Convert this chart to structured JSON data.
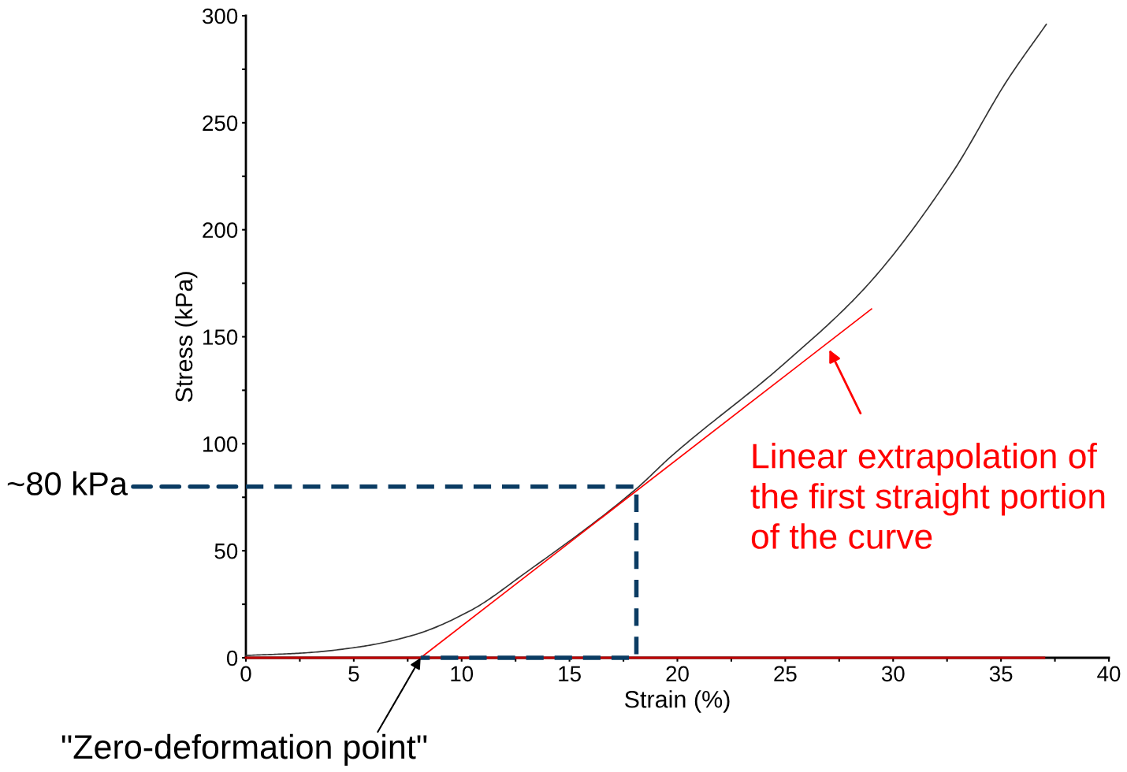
{
  "chart_data": {
    "type": "line",
    "xlabel": "Strain (%)",
    "ylabel": "Stress (kPa)",
    "xlim": [
      0,
      40
    ],
    "ylim": [
      0,
      300
    ],
    "xticks": [
      0,
      {
        "value": 2.5,
        "label": null
      },
      5,
      {
        "value": 7.5,
        "label": null
      },
      10,
      {
        "value": 12.5,
        "label": null
      },
      15,
      {
        "value": 17.5,
        "label": null
      },
      20,
      {
        "value": 22.5,
        "label": null
      },
      25,
      {
        "value": 27.5,
        "label": null
      },
      30,
      {
        "value": 32.5,
        "label": null
      },
      35,
      {
        "value": 37.5,
        "label": null
      },
      40
    ],
    "yticks": [
      0,
      {
        "value": 25,
        "label": null
      },
      50,
      {
        "value": 75,
        "label": null
      },
      100,
      {
        "value": 125,
        "label": null
      },
      150,
      {
        "value": 175,
        "label": null
      },
      200,
      {
        "value": 225,
        "label": null
      },
      250,
      {
        "value": 275,
        "label": null
      },
      300
    ],
    "grid": false,
    "legend": false,
    "series": [
      {
        "color": "#c00000",
        "x": [
          0,
          37
        ],
        "values": [
          0,
          0
        ]
      },
      {
        "color": "#333333",
        "x": [
          0,
          2.6,
          5.2,
          7.8,
          10.4,
          13.0,
          18.1,
          19.7,
          24.9,
          28.8,
          32.7,
          35.3,
          37.1
        ],
        "values": [
          1.1,
          2.2,
          5,
          10.7,
          22,
          40,
          79,
          94,
          137,
          174,
          226,
          270,
          296
        ]
      },
      {
        "color": "#ff0000",
        "x": [
          8.1,
          29
        ],
        "values": [
          0,
          163
        ]
      },
      {
        "color": "#0b3c63",
        "line_style": "dashed",
        "x": [
          0,
          18.1,
          18.1,
          8.1
        ],
        "values": [
          80,
          80,
          0,
          0
        ]
      }
    ],
    "annotations": [
      "~80 kPa",
      "Linear extrapolation of\nthe first straight portion\nof the curve",
      {
        "text": "\"Zero-deformation point\"",
        "x": 8.1,
        "y": 0
      }
    ]
  }
}
